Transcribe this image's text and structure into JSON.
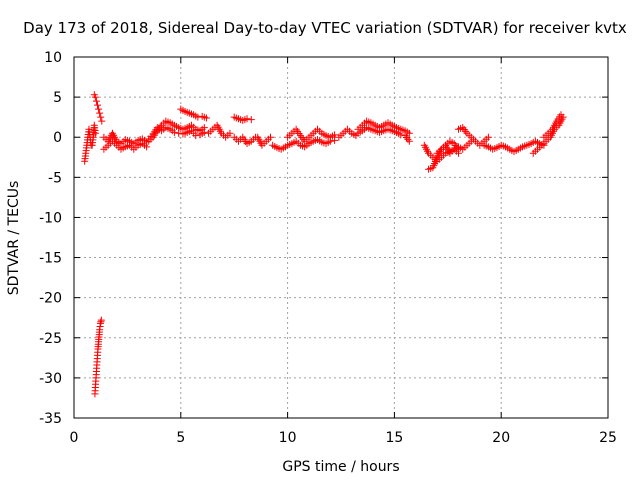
{
  "chart_data": {
    "type": "scatter",
    "title": "Day 173 of 2018, Sidereal Day-to-day VTEC variation (SDTVAR) for receiver kvtx",
    "xlabel": "GPS time / hours",
    "ylabel": "SDTVAR / TECUs",
    "xlim": [
      0,
      25
    ],
    "ylim": [
      -35,
      10
    ],
    "xticks": [
      0,
      5,
      10,
      15,
      20,
      25
    ],
    "yticks": [
      10,
      5,
      0,
      -5,
      -10,
      -15,
      -20,
      -25,
      -30,
      -35
    ],
    "grid": true,
    "marker": "+",
    "marker_color": "#ff0000",
    "series": [
      {
        "name": "SDTVAR",
        "segments": [
          {
            "x": [
              0.5,
              0.55,
              0.6,
              0.65,
              0.7,
              0.75,
              0.8
            ],
            "y": [
              -3.0,
              -2.0,
              -1.0,
              0.0,
              1.0,
              0.0,
              -1.0
            ]
          },
          {
            "x": [
              0.85,
              0.9,
              0.95,
              1.0
            ],
            "y": [
              -1.0,
              0.0,
              1.5,
              0.5
            ]
          },
          {
            "x": [
              0.95,
              1.0,
              1.05,
              1.1,
              1.15,
              1.2,
              1.25,
              1.3
            ],
            "y": [
              5.3,
              5.0,
              4.5,
              4.0,
              3.5,
              3.0,
              2.5,
              2.0
            ]
          },
          {
            "x": [
              0.98,
              1.0,
              1.02,
              1.04,
              1.06,
              1.08,
              1.1,
              1.12,
              1.14,
              1.16,
              1.18,
              1.2,
              1.22,
              1.24,
              1.26,
              1.28
            ],
            "y": [
              -32.0,
              -31.2,
              -30.4,
              -29.6,
              -28.8,
              -28.0,
              -27.2,
              -26.4,
              -25.8,
              -25.2,
              -24.6,
              -24.0,
              -23.6,
              -23.2,
              -23.0,
              -22.8
            ]
          },
          {
            "x": [
              1.4,
              1.6,
              1.8,
              2.0,
              2.2,
              2.4,
              2.6,
              2.8,
              3.0,
              3.2,
              3.4
            ],
            "y": [
              -1.5,
              -1.0,
              -0.5,
              -1.0,
              -1.5,
              -1.2,
              -1.0,
              -1.5,
              -1.0,
              -0.8,
              -1.2
            ]
          },
          {
            "x": [
              1.4,
              1.6,
              1.8,
              2.0,
              2.2,
              2.4,
              2.6,
              2.8,
              3.0,
              3.2,
              3.4
            ],
            "y": [
              0.0,
              -0.5,
              0.5,
              -0.5,
              -0.8,
              -0.3,
              -0.5,
              -0.8,
              -0.4,
              -0.2,
              -0.6
            ]
          },
          {
            "x": [
              3.5,
              3.7,
              3.9,
              4.1,
              4.3,
              4.5,
              4.7,
              4.9,
              5.1,
              5.3,
              5.5,
              5.7,
              5.9,
              6.1
            ],
            "y": [
              -0.5,
              0.0,
              0.8,
              1.5,
              2.0,
              1.8,
              1.5,
              1.2,
              1.0,
              1.2,
              1.5,
              1.0,
              0.8,
              1.2
            ]
          },
          {
            "x": [
              3.5,
              3.7,
              3.9,
              4.1,
              4.3,
              4.5,
              4.7,
              4.9,
              5.1,
              5.3,
              5.5,
              5.7,
              5.9,
              6.1
            ],
            "y": [
              -0.2,
              0.4,
              1.2,
              0.8,
              1.2,
              1.0,
              0.6,
              0.5,
              0.4,
              0.6,
              0.8,
              0.2,
              0.3,
              0.6
            ]
          },
          {
            "x": [
              5.0,
              5.2,
              5.4,
              5.6,
              5.8,
              6.0,
              6.2
            ],
            "y": [
              3.5,
              3.2,
              3.0,
              2.8,
              2.5,
              2.6,
              2.4
            ]
          },
          {
            "x": [
              6.3,
              6.5,
              6.7,
              6.9,
              7.1,
              7.3
            ],
            "y": [
              0.5,
              1.0,
              1.5,
              0.5,
              0.0,
              0.5
            ]
          },
          {
            "x": [
              7.5,
              7.7,
              7.9,
              8.1,
              8.3
            ],
            "y": [
              2.5,
              2.3,
              2.1,
              2.3,
              2.2
            ]
          },
          {
            "x": [
              7.5,
              7.7,
              7.9,
              8.1,
              8.3,
              8.5
            ],
            "y": [
              0.0,
              -0.5,
              0.0,
              -0.8,
              -0.5,
              0.0
            ]
          },
          {
            "x": [
              8.6,
              8.8,
              9.0,
              9.2
            ],
            "y": [
              0.0,
              -1.0,
              -0.5,
              0.0
            ]
          },
          {
            "x": [
              9.3,
              9.5,
              9.7,
              9.9
            ],
            "y": [
              -1.0,
              -1.3,
              -1.5,
              -1.2
            ]
          },
          {
            "x": [
              10.0,
              10.2,
              10.4,
              10.6,
              10.8,
              11.0,
              11.2,
              11.4,
              11.6,
              11.8,
              12.0,
              12.2
            ],
            "y": [
              0.0,
              0.5,
              1.0,
              0.2,
              -0.5,
              0.0,
              0.5,
              1.0,
              0.5,
              0.2,
              0.0,
              0.3
            ]
          },
          {
            "x": [
              10.0,
              10.2,
              10.4,
              10.6,
              10.8,
              11.0,
              11.2,
              11.4,
              11.6,
              11.8,
              12.0,
              12.2
            ],
            "y": [
              -1.0,
              -0.8,
              -0.5,
              -1.0,
              -1.2,
              -0.8,
              -0.5,
              -0.3,
              -0.6,
              -0.8,
              -0.5,
              -0.4
            ]
          },
          {
            "x": [
              12.4,
              12.6,
              12.8,
              13.0,
              13.2
            ],
            "y": [
              0.0,
              0.5,
              1.0,
              0.5,
              0.2
            ]
          },
          {
            "x": [
              13.3,
              13.5,
              13.7,
              13.9,
              14.1,
              14.3,
              14.5,
              14.7,
              14.9,
              15.1,
              15.3,
              15.5,
              15.7
            ],
            "y": [
              1.0,
              1.5,
              2.0,
              1.8,
              1.5,
              1.2,
              1.5,
              1.8,
              1.5,
              1.2,
              1.0,
              0.8,
              0.5
            ]
          },
          {
            "x": [
              13.3,
              13.5,
              13.7,
              13.9,
              14.1,
              14.3,
              14.5,
              14.7,
              14.9,
              15.1,
              15.3,
              15.5,
              15.7
            ],
            "y": [
              0.5,
              0.8,
              1.2,
              1.0,
              0.8,
              0.6,
              0.8,
              1.0,
              0.8,
              0.6,
              0.3,
              0.2,
              -0.5
            ]
          },
          {
            "x": [
              16.4,
              16.6,
              16.8,
              17.0,
              17.2,
              17.4,
              17.6,
              17.8,
              18.0,
              18.2,
              18.4,
              18.6
            ],
            "y": [
              -1.0,
              -2.0,
              -2.5,
              -3.0,
              -2.5,
              -2.0,
              -1.8,
              -1.5,
              -1.2,
              -1.5,
              -1.0,
              -0.5
            ]
          },
          {
            "x": [
              16.6,
              16.8,
              17.0,
              17.2,
              17.4,
              17.6,
              17.8,
              18.0
            ],
            "y": [
              -4.0,
              -3.8,
              -2.5,
              -1.5,
              -1.0,
              -2.0,
              -1.5,
              -2.0
            ]
          },
          {
            "x": [
              17.0,
              17.2,
              17.4,
              17.6,
              17.8,
              18.0
            ],
            "y": [
              -2.0,
              -1.5,
              -1.0,
              -0.5,
              -0.8,
              -1.5
            ]
          },
          {
            "x": [
              18.0,
              18.2,
              18.4,
              18.6,
              18.8,
              19.0,
              19.2,
              19.4
            ],
            "y": [
              1.0,
              1.2,
              0.5,
              0.0,
              -0.5,
              -1.0,
              -0.5,
              0.0
            ]
          },
          {
            "x": [
              19.2,
              19.4,
              19.6,
              19.8,
              20.0,
              20.2,
              20.4,
              20.6,
              20.8,
              21.0,
              21.2,
              21.4,
              21.6,
              21.8,
              22.0
            ],
            "y": [
              -1.0,
              -1.2,
              -1.5,
              -1.3,
              -1.0,
              -1.2,
              -1.5,
              -1.8,
              -1.5,
              -1.2,
              -1.0,
              -0.8,
              -0.5,
              -0.8,
              -1.0
            ]
          },
          {
            "x": [
              21.5,
              21.7,
              21.9,
              22.1,
              22.3,
              22.5,
              22.7,
              22.9
            ],
            "y": [
              -2.0,
              -1.5,
              -1.0,
              -0.5,
              0.0,
              1.0,
              1.5,
              2.5
            ]
          },
          {
            "x": [
              22.0,
              22.2,
              22.4,
              22.6,
              22.8
            ],
            "y": [
              0.0,
              0.5,
              1.0,
              2.0,
              2.8
            ]
          }
        ]
      }
    ]
  }
}
